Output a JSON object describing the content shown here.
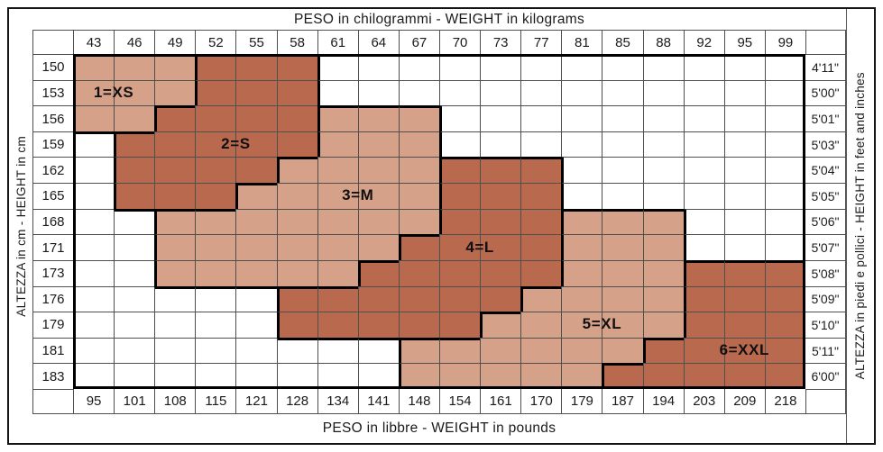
{
  "chart_data": {
    "type": "heatmap",
    "title_top": "PESO in chilogrammi -  WEIGHT in kilograms",
    "title_bottom": "PESO in libbre -  WEIGHT in pounds",
    "axis_left_label": "ALTEZZA in cm  -  HEIGHT in cm",
    "axis_right_label": "ALTEZZA in piedi e pollici - HEIGHT in feet and inches",
    "x_kg": [
      43,
      46,
      49,
      52,
      55,
      58,
      61,
      64,
      67,
      70,
      73,
      77,
      81,
      85,
      88,
      92,
      95,
      99
    ],
    "x_lb": [
      95,
      101,
      108,
      115,
      121,
      128,
      134,
      141,
      148,
      154,
      161,
      170,
      179,
      187,
      194,
      203,
      209,
      218
    ],
    "y_cm": [
      150,
      153,
      156,
      159,
      162,
      165,
      168,
      171,
      173,
      176,
      179,
      181,
      183
    ],
    "y_ftin": [
      "4'11\"",
      "5'00\"",
      "5'01\"",
      "5'03\"",
      "5'04\"",
      "5'05\"",
      "5'06\"",
      "5'07\"",
      "5'08\"",
      "5'09\"",
      "5'10\"",
      "5'11\"",
      "6'00\""
    ],
    "sizes": [
      {
        "id": "1",
        "name": "XS",
        "label": "1=XS",
        "shade": "light"
      },
      {
        "id": "2",
        "name": "S",
        "label": "2=S",
        "shade": "dark"
      },
      {
        "id": "3",
        "name": "M",
        "label": "3=M",
        "shade": "light"
      },
      {
        "id": "4",
        "name": "L",
        "label": "4=L",
        "shade": "dark"
      },
      {
        "id": "5",
        "name": "XL",
        "label": "5=XL",
        "shade": "light"
      },
      {
        "id": "6",
        "name": "XXL",
        "label": "6=XXL",
        "shade": "dark"
      }
    ],
    "region_map": [
      "111222............",
      "111222............",
      "112222333.........",
      ".22222333.........",
      ".22223333444......",
      ".22233333444......",
      "..3333333444555...",
      "..3333334444555...",
      "..3333344444555666",
      ".....4444445555666",
      ".....4444455555666",
      "........5555556666",
      "........5555566666"
    ],
    "size_label_positions": [
      {
        "label": "1=XS",
        "row": 1,
        "col": 0,
        "span": 2,
        "justify": "center"
      },
      {
        "label": "2=S",
        "row": 3,
        "col": 3,
        "span": 2,
        "justify": "center"
      },
      {
        "label": "3=M",
        "row": 5,
        "col": 6,
        "span": 2,
        "justify": "center"
      },
      {
        "label": "4=L",
        "row": 7,
        "col": 9,
        "span": 2,
        "justify": "center"
      },
      {
        "label": "5=XL",
        "row": 10,
        "col": 12,
        "span": 2,
        "justify": "center"
      },
      {
        "label": "6=XXL",
        "row": 11,
        "col": 15,
        "span": 3,
        "justify": "center"
      }
    ],
    "colors": {
      "light": "#D5A189",
      "dark": "#B8694E",
      "empty": "#FFFFFF",
      "grid_thin": "#4F4F4F",
      "grid_thick": "#000000",
      "background": "#FFFFFF"
    },
    "legend_position": "labels-inside-regions",
    "grid": true
  }
}
